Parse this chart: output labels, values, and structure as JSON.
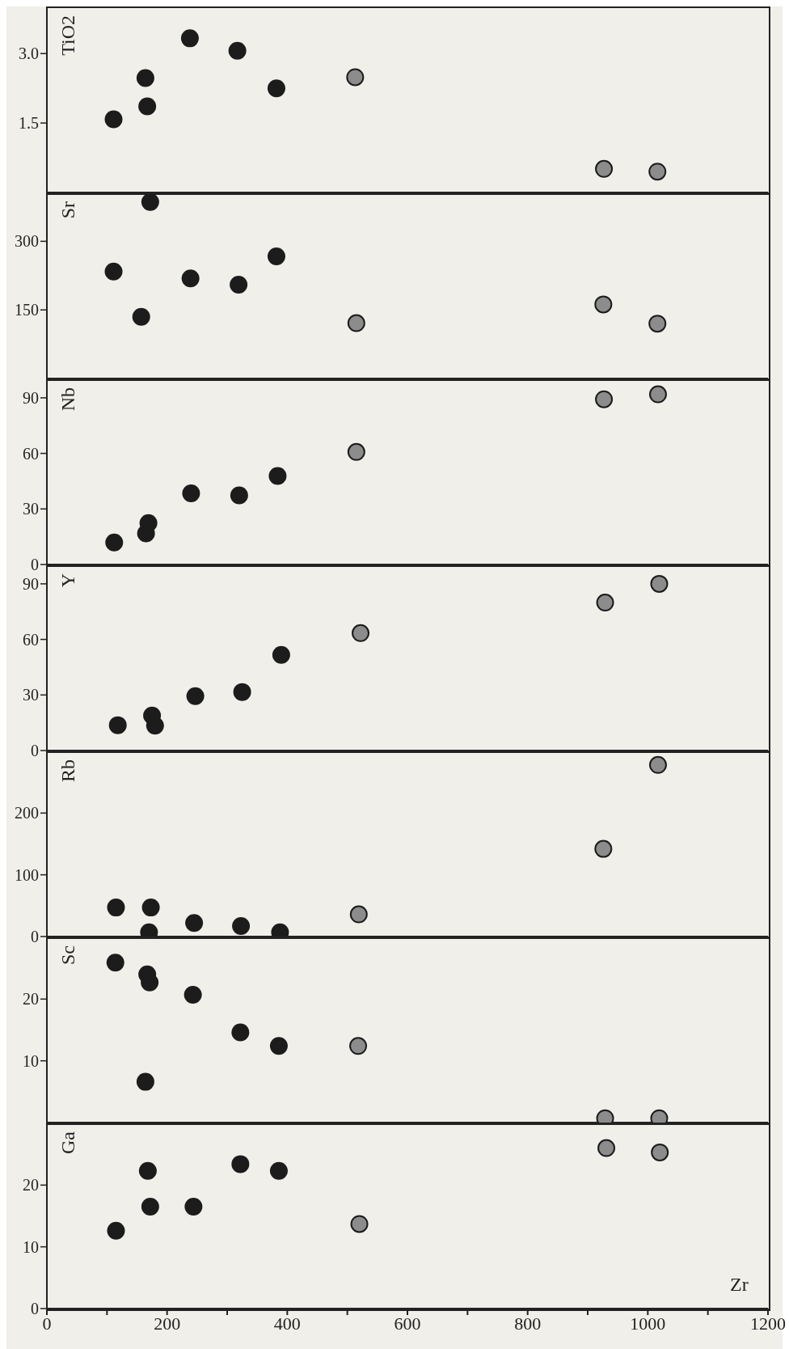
{
  "chart_data": [
    {
      "type": "scatter",
      "ylabel": "TiO2",
      "xlim": [
        0,
        1200
      ],
      "ylim": [
        0,
        4
      ],
      "yticks": [
        1.5,
        {
          "value": 3,
          "label": "3.0"
        }
      ],
      "tick_labels": "y",
      "marker": "circle",
      "series": [
        {
          "color": "#1c1c1c",
          "x": [
            111,
            164,
            167,
            238,
            317,
            382
          ],
          "values": [
            1.58,
            2.47,
            1.86,
            3.33,
            3.06,
            2.25
          ]
        },
        {
          "color": "#8c8c8c",
          "x": [
            513,
            927,
            1016
          ],
          "values": [
            2.49,
            0.51,
            0.45
          ]
        }
      ]
    },
    {
      "type": "scatter",
      "ylabel": "Sr",
      "xlim": [
        0,
        1200
      ],
      "ylim": [
        0,
        405
      ],
      "yticks": [
        150,
        300
      ],
      "tick_labels": "y",
      "marker": "circle",
      "series": [
        {
          "color": "#1c1c1c",
          "x": [
            172,
            111,
            157,
            239,
            319,
            382
          ],
          "values": [
            386,
            234,
            135,
            219,
            205,
            267
          ]
        },
        {
          "color": "#8c8c8c",
          "x": [
            515,
            926,
            1016
          ],
          "values": [
            121,
            162,
            120
          ]
        }
      ]
    },
    {
      "type": "scatter",
      "ylabel": "Nb",
      "xlim": [
        0,
        1200
      ],
      "ylim": [
        0,
        100
      ],
      "yticks": [
        0,
        30,
        60,
        90
      ],
      "tick_labels": "y",
      "marker": "circle",
      "series": [
        {
          "color": "#1c1c1c",
          "x": [
            112,
            165,
            169,
            240,
            320,
            384
          ],
          "values": [
            11.9,
            16.8,
            22.4,
            38.4,
            37.3,
            47.8
          ]
        },
        {
          "color": "#8c8c8c",
          "x": [
            515,
            927,
            1017
          ],
          "values": [
            60.8,
            89.2,
            91.9
          ]
        }
      ]
    },
    {
      "type": "scatter",
      "ylabel": "Y",
      "xlim": [
        0,
        1200
      ],
      "ylim": [
        0,
        100
      ],
      "yticks": [
        0,
        30,
        60,
        90
      ],
      "tick_labels": "y",
      "marker": "circle",
      "series": [
        {
          "color": "#1c1c1c",
          "x": [
            118,
            175,
            180,
            247,
            325,
            390
          ],
          "values": [
            13.7,
            18.9,
            13.4,
            29.4,
            31.6,
            51.6
          ]
        },
        {
          "color": "#8c8c8c",
          "x": [
            522,
            929,
            1019
          ],
          "values": [
            63.4,
            79.9,
            90
          ]
        }
      ]
    },
    {
      "type": "scatter",
      "ylabel": "Rb",
      "xlim": [
        0,
        1200
      ],
      "ylim": [
        0,
        300
      ],
      "yticks": [
        0,
        100,
        200
      ],
      "tick_labels": "y",
      "marker": "circle",
      "series": [
        {
          "color": "#1c1c1c",
          "x": [
            115,
            173,
            170,
            245,
            323,
            388
          ],
          "values": [
            47,
            47,
            7,
            22,
            17,
            7
          ]
        },
        {
          "color": "#8c8c8c",
          "x": [
            519,
            926,
            1017
          ],
          "values": [
            36,
            142,
            278
          ]
        }
      ]
    },
    {
      "type": "scatter",
      "ylabel": "Sc",
      "xlim": [
        0,
        1200
      ],
      "ylim": [
        0,
        30
      ],
      "yticks": [
        10,
        20
      ],
      "tick_labels": "y",
      "marker": "circle",
      "series": [
        {
          "color": "#1c1c1c",
          "x": [
            114,
            167,
            171,
            243,
            322,
            386,
            164
          ],
          "values": [
            25.9,
            24,
            22.7,
            20.7,
            14.6,
            12.4,
            6.6
          ]
        },
        {
          "color": "#8c8c8c",
          "x": [
            518,
            929,
            1019
          ],
          "values": [
            12.4,
            0.7,
            0.7
          ]
        }
      ]
    },
    {
      "type": "scatter",
      "ylabel": "Ga",
      "xlabel": "Zr",
      "xlim": [
        0,
        1200
      ],
      "ylim": [
        0,
        30
      ],
      "yticks": [
        0,
        10,
        20
      ],
      "xticks": [
        0,
        {
          "value": 100,
          "label": null
        },
        200,
        {
          "value": 300,
          "label": null
        },
        400,
        {
          "value": 500,
          "label": null
        },
        600,
        {
          "value": 700,
          "label": null
        },
        800,
        {
          "value": 900,
          "label": null
        },
        1000,
        {
          "value": 1100,
          "label": null
        },
        1200
      ],
      "marker": "circle",
      "series": [
        {
          "color": "#1c1c1c",
          "x": [
            115,
            168,
            172,
            244,
            322,
            386
          ],
          "values": [
            12.6,
            22.3,
            16.5,
            16.5,
            23.4,
            22.3
          ]
        },
        {
          "color": "#8c8c8c",
          "x": [
            520,
            931,
            1020
          ],
          "values": [
            13.7,
            26,
            25.3
          ]
        }
      ]
    }
  ]
}
